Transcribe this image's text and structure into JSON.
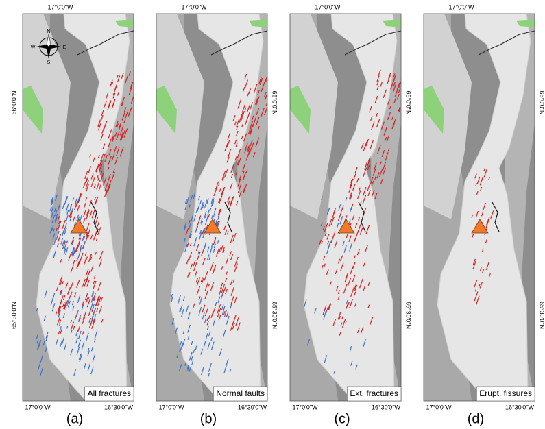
{
  "panels": [
    {
      "letter": "(a)",
      "caption": "All fractures",
      "top_label": "17°0'0\"W",
      "bottom_labels": [
        "17°0'0\"W",
        "16°30'0\"W"
      ],
      "side_labels": [
        "66°0'0\"N",
        "65°30'0\"N"
      ]
    },
    {
      "letter": "(b)",
      "caption": "Normal faults",
      "top_label": "17°0'0\"W",
      "bottom_labels": [
        "17°0'0\"W",
        "16°30'0\"W"
      ],
      "side_labels": [
        "66°0'0\"N",
        "65°30'0\"N"
      ]
    },
    {
      "letter": "(c)",
      "caption": "Ext. fractures",
      "top_label": "17°0'0\"W",
      "bottom_labels": [
        "17°0'0\"W",
        "16°30'0\"W"
      ],
      "side_labels": [
        "66°0'0\"N",
        "65°30'0\"N"
      ]
    },
    {
      "letter": "(d)",
      "caption": "Erupt. fissures",
      "top_label": "17°0'0\"W",
      "bottom_labels": [
        "17°0'0\"W",
        "16°30'0\"W"
      ],
      "side_labels": [
        "66°0'0\"N",
        "65°30'0\"N"
      ]
    }
  ],
  "compass": {
    "n": "N",
    "e": "E",
    "s": "S",
    "w": "W"
  }
}
